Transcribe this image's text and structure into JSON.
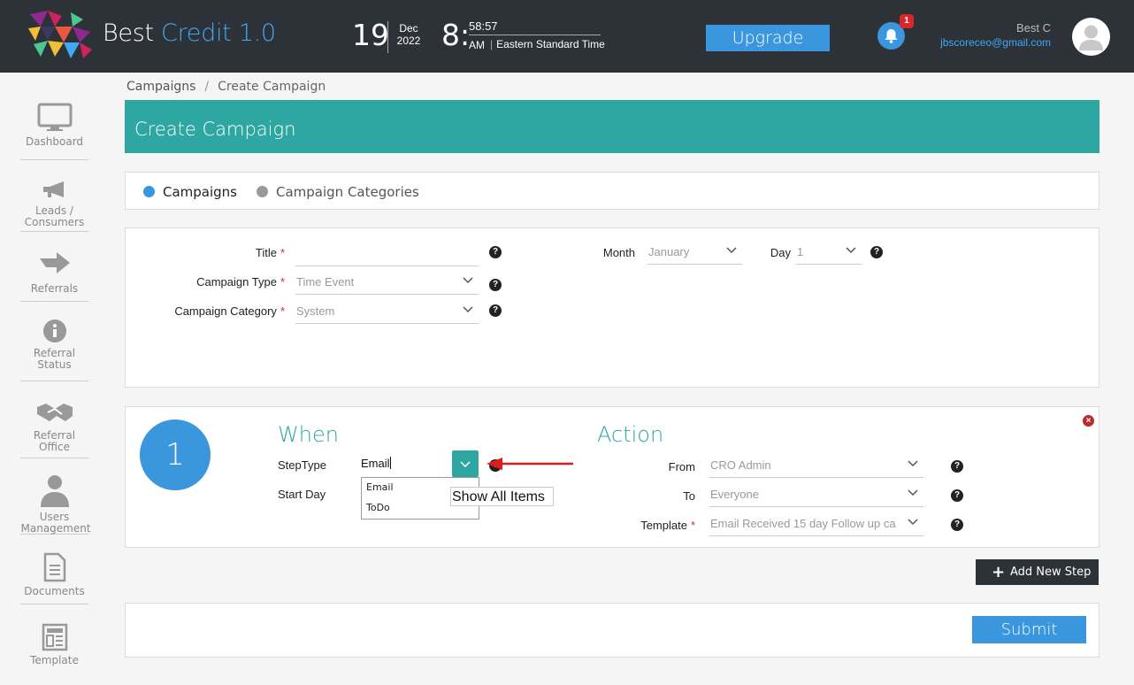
{
  "app": {
    "brand_main": "Best",
    "brand_accent": "Credit 1.0"
  },
  "clock": {
    "day": "19",
    "month": "Dec",
    "year": "2022",
    "hour": "8:",
    "seconds": "58:57",
    "ampm": "AM",
    "timezone": "Eastern Standard Time"
  },
  "header": {
    "upgrade_label": "Upgrade",
    "notification_count": "1",
    "user_name": "Best C",
    "user_email": "jbscoreceo@gmail.com"
  },
  "sidebar": {
    "items": [
      {
        "label": "Dashboard",
        "icon": "monitor-icon"
      },
      {
        "label": "Leads / Consumers",
        "icon": "megaphone-icon"
      },
      {
        "label": "Referrals",
        "icon": "arrow-right-icon"
      },
      {
        "label": "Referral Status",
        "icon": "info-icon"
      },
      {
        "label": "Referral Office",
        "icon": "handshake-icon"
      },
      {
        "label": "Users Management",
        "icon": "user-icon"
      },
      {
        "label": "Documents",
        "icon": "document-icon"
      },
      {
        "label": "Template",
        "icon": "template-icon"
      }
    ]
  },
  "breadcrumb": {
    "parent": "Campaigns",
    "separator": "/",
    "current": "Create Campaign"
  },
  "page_title": "Create Campaign",
  "tabs": [
    {
      "label": "Campaigns",
      "active": true
    },
    {
      "label": "Campaign Categories",
      "active": false
    }
  ],
  "form": {
    "title_label": "Title",
    "title_value": "",
    "type_label": "Campaign Type",
    "type_value": "Time Event",
    "category_label": "Campaign Category",
    "category_value": "System",
    "month_label": "Month",
    "month_value": "January",
    "day_label": "Day",
    "day_value": "1",
    "required_mark": "*",
    "help_mark": "?"
  },
  "step": {
    "number": "1",
    "when_heading": "When",
    "action_heading": "Action",
    "steptype_label": "StepType",
    "steptype_value": "Email",
    "startday_label": "Start Day",
    "dropdown_options": [
      "Email",
      "ToDo"
    ],
    "tooltip": "Show All Items",
    "from_label": "From",
    "from_value": "CRO Admin",
    "to_label": "To",
    "to_value": "Everyone",
    "template_label": "Template",
    "template_value": "Email Received 15 day Follow up ca",
    "remove_mark": "×"
  },
  "buttons": {
    "add_step_plus": "+",
    "add_step": "Add New Step",
    "submit": "Submit"
  },
  "colors": {
    "header_bg": "#2d3138",
    "teal": "#2ea6a1",
    "blue": "#3a96dd",
    "brand_accent": "#3fa9f5",
    "badge_red": "#d9262d"
  }
}
